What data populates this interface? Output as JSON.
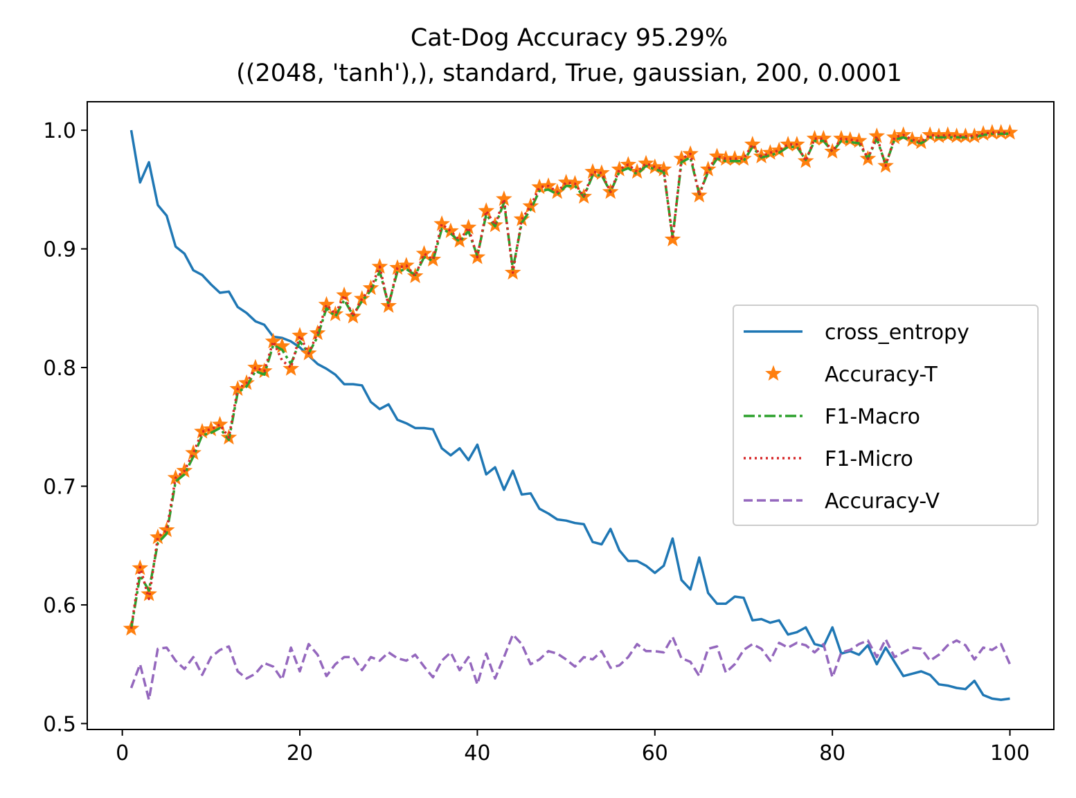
{
  "chart_data": {
    "type": "line",
    "title": "Cat-Dog Accuracy 95.29%",
    "subtitle": "((2048, 'tanh'),), standard, True, gaussian, 200, 0.0001",
    "xlabel": "",
    "ylabel": "",
    "xlim": [
      -3.95,
      104.95
    ],
    "ylim": [
      0.495,
      1.024
    ],
    "xticks": [
      0,
      20,
      40,
      60,
      80,
      100
    ],
    "yticks": [
      0.5,
      0.6,
      0.7,
      0.8,
      0.9,
      1.0
    ],
    "xtick_labels": [
      "0",
      "20",
      "40",
      "60",
      "80",
      "100"
    ],
    "ytick_labels": [
      "0.5",
      "0.6",
      "0.7",
      "0.8",
      "0.9",
      "1.0"
    ],
    "grid": false,
    "legend_position": "center-right",
    "x": [
      1,
      2,
      3,
      4,
      5,
      6,
      7,
      8,
      9,
      10,
      11,
      12,
      13,
      14,
      15,
      16,
      17,
      18,
      19,
      20,
      21,
      22,
      23,
      24,
      25,
      26,
      27,
      28,
      29,
      30,
      31,
      32,
      33,
      34,
      35,
      36,
      37,
      38,
      39,
      40,
      41,
      42,
      43,
      44,
      45,
      46,
      47,
      48,
      49,
      50,
      51,
      52,
      53,
      54,
      55,
      56,
      57,
      58,
      59,
      60,
      61,
      62,
      63,
      64,
      65,
      66,
      67,
      68,
      69,
      70,
      71,
      72,
      73,
      74,
      75,
      76,
      77,
      78,
      79,
      80,
      81,
      82,
      83,
      84,
      85,
      86,
      87,
      88,
      89,
      90,
      91,
      92,
      93,
      94,
      95,
      96,
      97,
      98,
      99,
      100
    ],
    "series": [
      {
        "name": "cross_entropy",
        "color": "#1f77b4",
        "style": "solid",
        "values": [
          1.0,
          0.956,
          0.973,
          0.937,
          0.928,
          0.902,
          0.896,
          0.882,
          0.878,
          0.87,
          0.863,
          0.864,
          0.851,
          0.846,
          0.839,
          0.836,
          0.826,
          0.825,
          0.822,
          0.817,
          0.81,
          0.803,
          0.799,
          0.794,
          0.786,
          0.786,
          0.785,
          0.771,
          0.765,
          0.769,
          0.756,
          0.753,
          0.749,
          0.749,
          0.748,
          0.732,
          0.726,
          0.732,
          0.722,
          0.735,
          0.71,
          0.716,
          0.697,
          0.713,
          0.693,
          0.694,
          0.681,
          0.677,
          0.672,
          0.671,
          0.669,
          0.668,
          0.653,
          0.651,
          0.664,
          0.646,
          0.637,
          0.637,
          0.633,
          0.627,
          0.633,
          0.656,
          0.621,
          0.613,
          0.64,
          0.61,
          0.601,
          0.601,
          0.607,
          0.606,
          0.587,
          0.588,
          0.585,
          0.587,
          0.575,
          0.577,
          0.581,
          0.567,
          0.565,
          0.581,
          0.559,
          0.561,
          0.558,
          0.566,
          0.55,
          0.564,
          0.552,
          0.54,
          0.542,
          0.544,
          0.541,
          0.533,
          0.532,
          0.53,
          0.529,
          0.536,
          0.524,
          0.521,
          0.52,
          0.521
        ]
      },
      {
        "name": "Accuracy-T",
        "color": "#ff7f0e",
        "style": "star-marker",
        "values": [
          0.58,
          0.631,
          0.609,
          0.657,
          0.663,
          0.707,
          0.713,
          0.728,
          0.746,
          0.748,
          0.752,
          0.741,
          0.782,
          0.787,
          0.8,
          0.797,
          0.822,
          0.818,
          0.799,
          0.827,
          0.812,
          0.829,
          0.853,
          0.845,
          0.861,
          0.843,
          0.858,
          0.867,
          0.885,
          0.852,
          0.884,
          0.886,
          0.877,
          0.896,
          0.891,
          0.921,
          0.915,
          0.907,
          0.918,
          0.893,
          0.932,
          0.92,
          0.942,
          0.88,
          0.925,
          0.936,
          0.952,
          0.953,
          0.948,
          0.956,
          0.955,
          0.944,
          0.965,
          0.964,
          0.948,
          0.967,
          0.971,
          0.965,
          0.972,
          0.969,
          0.967,
          0.908,
          0.976,
          0.98,
          0.945,
          0.967,
          0.978,
          0.976,
          0.976,
          0.976,
          0.988,
          0.978,
          0.981,
          0.983,
          0.988,
          0.988,
          0.974,
          0.993,
          0.993,
          0.982,
          0.993,
          0.992,
          0.991,
          0.976,
          0.995,
          0.97,
          0.994,
          0.996,
          0.992,
          0.99,
          0.996,
          0.995,
          0.996,
          0.995,
          0.995,
          0.995,
          0.997,
          0.998,
          0.998,
          0.998
        ]
      },
      {
        "name": "F1-Macro",
        "color": "#2ca02c",
        "style": "dashdot",
        "values": [
          0.58,
          0.625,
          0.612,
          0.652,
          0.66,
          0.704,
          0.71,
          0.725,
          0.743,
          0.745,
          0.749,
          0.739,
          0.779,
          0.784,
          0.797,
          0.794,
          0.819,
          0.815,
          0.803,
          0.822,
          0.812,
          0.826,
          0.85,
          0.843,
          0.857,
          0.844,
          0.856,
          0.865,
          0.881,
          0.853,
          0.881,
          0.883,
          0.878,
          0.893,
          0.89,
          0.917,
          0.913,
          0.906,
          0.915,
          0.894,
          0.929,
          0.919,
          0.939,
          0.883,
          0.922,
          0.933,
          0.949,
          0.95,
          0.946,
          0.953,
          0.953,
          0.944,
          0.962,
          0.962,
          0.948,
          0.965,
          0.968,
          0.963,
          0.97,
          0.967,
          0.965,
          0.91,
          0.973,
          0.977,
          0.946,
          0.965,
          0.976,
          0.974,
          0.974,
          0.974,
          0.986,
          0.977,
          0.979,
          0.981,
          0.986,
          0.986,
          0.975,
          0.991,
          0.991,
          0.982,
          0.991,
          0.99,
          0.989,
          0.976,
          0.993,
          0.971,
          0.992,
          0.994,
          0.991,
          0.989,
          0.994,
          0.994,
          0.994,
          0.994,
          0.994,
          0.994,
          0.996,
          0.997,
          0.997,
          0.997
        ]
      },
      {
        "name": "F1-Micro",
        "color": "#d62728",
        "style": "dotted",
        "values": [
          0.58,
          0.632,
          0.605,
          0.657,
          0.663,
          0.707,
          0.713,
          0.728,
          0.746,
          0.748,
          0.752,
          0.741,
          0.782,
          0.787,
          0.8,
          0.797,
          0.822,
          0.806,
          0.8,
          0.827,
          0.812,
          0.829,
          0.853,
          0.845,
          0.861,
          0.843,
          0.858,
          0.867,
          0.885,
          0.852,
          0.884,
          0.886,
          0.877,
          0.896,
          0.891,
          0.921,
          0.915,
          0.907,
          0.918,
          0.893,
          0.932,
          0.92,
          0.942,
          0.88,
          0.925,
          0.936,
          0.952,
          0.953,
          0.948,
          0.956,
          0.955,
          0.944,
          0.965,
          0.964,
          0.948,
          0.967,
          0.971,
          0.965,
          0.972,
          0.969,
          0.967,
          0.908,
          0.976,
          0.98,
          0.945,
          0.967,
          0.978,
          0.976,
          0.976,
          0.976,
          0.988,
          0.978,
          0.981,
          0.983,
          0.988,
          0.988,
          0.974,
          0.993,
          0.993,
          0.982,
          0.993,
          0.992,
          0.991,
          0.976,
          0.995,
          0.97,
          0.994,
          0.996,
          0.992,
          0.99,
          0.996,
          0.995,
          0.996,
          0.995,
          0.995,
          0.995,
          0.997,
          0.998,
          0.998,
          0.998
        ]
      },
      {
        "name": "Accuracy-V",
        "color": "#9467bd",
        "style": "dashed",
        "values": [
          0.53,
          0.55,
          0.52,
          0.563,
          0.564,
          0.553,
          0.546,
          0.556,
          0.541,
          0.556,
          0.562,
          0.565,
          0.544,
          0.538,
          0.542,
          0.551,
          0.548,
          0.537,
          0.564,
          0.544,
          0.567,
          0.558,
          0.54,
          0.55,
          0.556,
          0.556,
          0.545,
          0.556,
          0.553,
          0.56,
          0.555,
          0.553,
          0.558,
          0.548,
          0.539,
          0.553,
          0.56,
          0.545,
          0.556,
          0.533,
          0.559,
          0.538,
          0.556,
          0.575,
          0.567,
          0.55,
          0.554,
          0.561,
          0.559,
          0.554,
          0.548,
          0.556,
          0.554,
          0.561,
          0.547,
          0.549,
          0.556,
          0.567,
          0.561,
          0.561,
          0.56,
          0.573,
          0.555,
          0.552,
          0.54,
          0.563,
          0.565,
          0.543,
          0.55,
          0.562,
          0.567,
          0.563,
          0.553,
          0.568,
          0.564,
          0.568,
          0.566,
          0.56,
          0.567,
          0.539,
          0.56,
          0.562,
          0.567,
          0.57,
          0.556,
          0.571,
          0.556,
          0.56,
          0.564,
          0.563,
          0.553,
          0.558,
          0.566,
          0.57,
          0.566,
          0.554,
          0.564,
          0.562,
          0.567,
          0.55
        ]
      }
    ]
  }
}
